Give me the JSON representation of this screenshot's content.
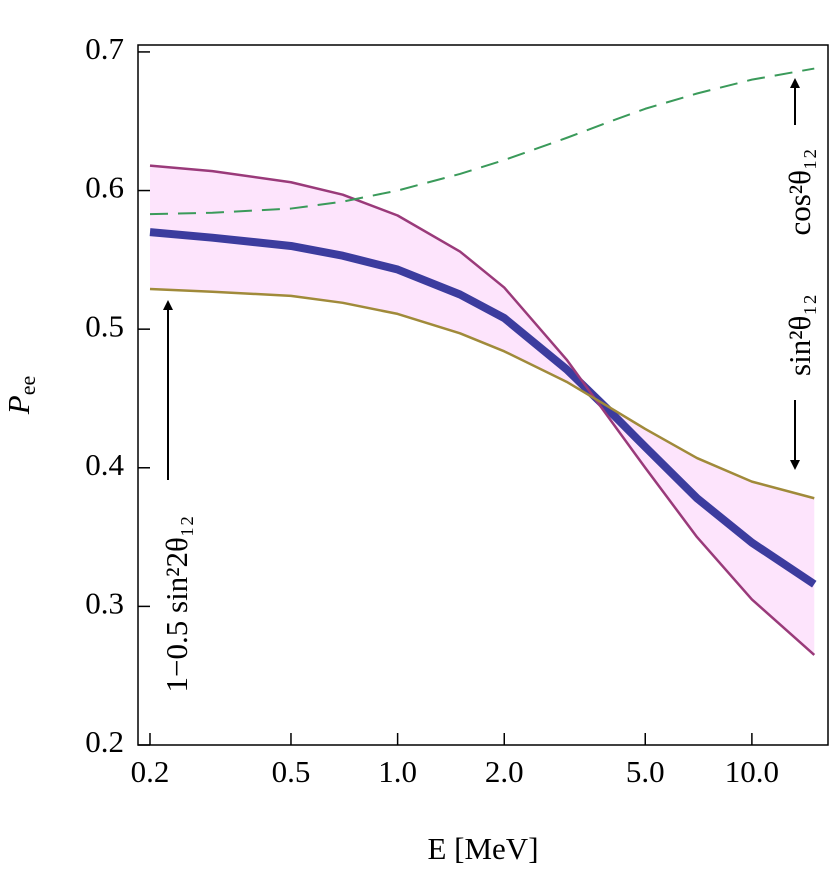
{
  "chart_data": {
    "type": "line",
    "xlabel": "E [MeV]",
    "ylabel": {
      "main": "P",
      "sub": "ee"
    },
    "xscale": "log",
    "x": [
      0.2,
      0.3,
      0.5,
      0.7,
      1,
      1.5,
      2,
      3,
      4,
      5,
      7,
      10,
      15
    ],
    "series": [
      {
        "color": "#3c3c9e",
        "width": 8,
        "values": [
          0.57,
          0.566,
          0.56,
          0.553,
          0.543,
          0.525,
          0.508,
          0.471,
          0.44,
          0.415,
          0.378,
          0.346,
          0.316
        ]
      },
      {
        "color": "#9a3a7a",
        "width": 2.5,
        "values": [
          0.618,
          0.614,
          0.606,
          0.597,
          0.582,
          0.556,
          0.53,
          0.478,
          0.434,
          0.4,
          0.35,
          0.305,
          0.265
        ]
      },
      {
        "color": "#a08a3a",
        "width": 2.5,
        "values": [
          0.529,
          0.527,
          0.524,
          0.519,
          0.511,
          0.497,
          0.484,
          0.462,
          0.443,
          0.428,
          0.407,
          0.39,
          0.378
        ]
      },
      {
        "color": "#3a9a5a",
        "width": 2,
        "dashed": true,
        "values": [
          0.583,
          0.584,
          0.587,
          0.592,
          0.6,
          0.612,
          0.622,
          0.638,
          0.65,
          0.659,
          0.67,
          0.68,
          0.688
        ]
      }
    ],
    "band_color": "#fde4fc",
    "xlim": [
      0.185,
      16.4
    ],
    "ylim": [
      0.2,
      0.705
    ],
    "xticks": [
      0.2,
      0.5,
      {
        "value": 1,
        "label": "1.0"
      },
      {
        "value": 2,
        "label": "2.0"
      },
      {
        "value": 5,
        "label": "5.0"
      },
      {
        "value": 10,
        "label": "10.0"
      }
    ],
    "yticks": [
      0.2,
      0.3,
      0.4,
      0.5,
      0.6,
      0.7
    ],
    "annotations": [
      "1−0.5 sin²2θ₁₂",
      "sin²θ₁₂",
      "cos²θ₁₂"
    ]
  }
}
